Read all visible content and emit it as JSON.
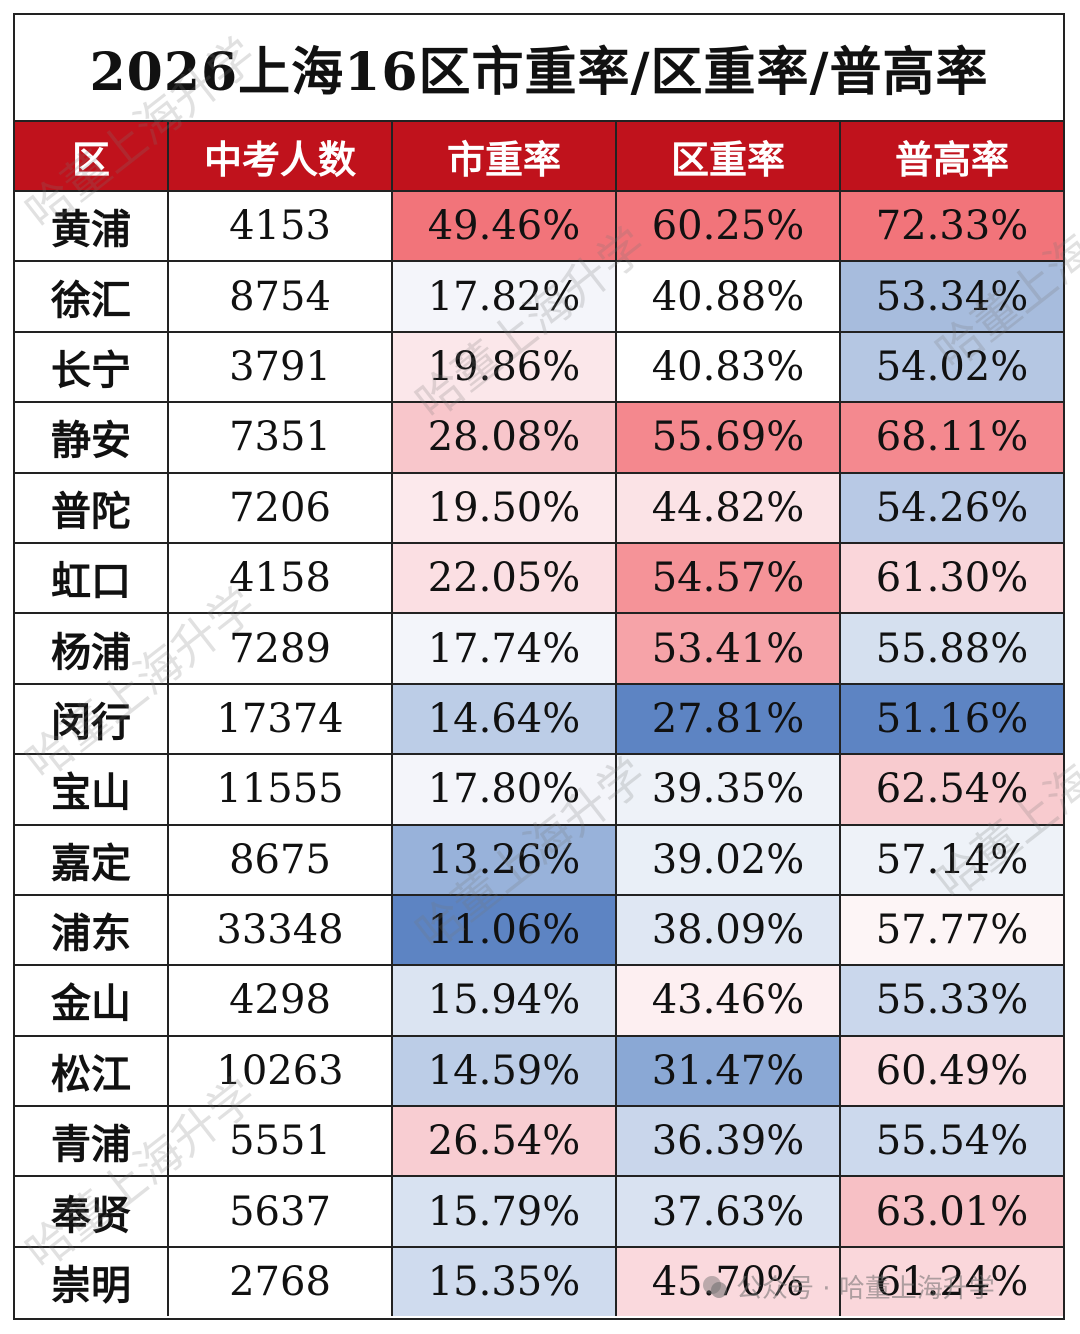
{
  "title": "2026上海16区市重率/区重率/普高率",
  "headers": [
    "区",
    "中考人数",
    "市重率",
    "区重率",
    "普高率"
  ],
  "rows": [
    {
      "district": "黄浦",
      "count": "4153",
      "city": "49.46%",
      "dist": "60.25%",
      "high": "72.33%",
      "city_color": "#f2747a",
      "dist_color": "#f2747a",
      "high_color": "#f2747a"
    },
    {
      "district": "徐汇",
      "count": "8754",
      "city": "17.82%",
      "dist": "40.88%",
      "high": "53.34%",
      "city_color": "#f4f5fa",
      "dist_color": "#ffffff",
      "high_color": "#a7bcdd"
    },
    {
      "district": "长宁",
      "count": "3791",
      "city": "19.86%",
      "dist": "40.83%",
      "high": "54.02%",
      "city_color": "#fbe7ea",
      "dist_color": "#ffffff",
      "high_color": "#b5c7e3"
    },
    {
      "district": "静安",
      "count": "7351",
      "city": "28.08%",
      "dist": "55.69%",
      "high": "68.11%",
      "city_color": "#f8c6cb",
      "dist_color": "#f4888e",
      "high_color": "#f4898f"
    },
    {
      "district": "普陀",
      "count": "7206",
      "city": "19.50%",
      "dist": "44.82%",
      "high": "54.26%",
      "city_color": "#fce9ec",
      "dist_color": "#fbe3e6",
      "high_color": "#b8c9e5"
    },
    {
      "district": "虹口",
      "count": "4158",
      "city": "22.05%",
      "dist": "54.57%",
      "high": "61.30%",
      "city_color": "#fbdfe3",
      "dist_color": "#f59398",
      "high_color": "#fad6da"
    },
    {
      "district": "杨浦",
      "count": "7289",
      "city": "17.74%",
      "dist": "53.41%",
      "high": "55.88%",
      "city_color": "#f3f5fa",
      "dist_color": "#f6a3a8",
      "high_color": "#d5e0ef"
    },
    {
      "district": "闵行",
      "count": "17374",
      "city": "14.64%",
      "dist": "27.81%",
      "high": "51.16%",
      "city_color": "#bccde7",
      "dist_color": "#5d84c3",
      "high_color": "#5d84c3"
    },
    {
      "district": "宝山",
      "count": "11555",
      "city": "17.80%",
      "dist": "39.35%",
      "high": "62.54%",
      "city_color": "#f4f5fa",
      "dist_color": "#eef2f8",
      "high_color": "#f8cbcf"
    },
    {
      "district": "嘉定",
      "count": "8675",
      "city": "13.26%",
      "dist": "39.02%",
      "high": "57.14%",
      "city_color": "#98b2da",
      "dist_color": "#e9eff7",
      "high_color": "#eef2f8"
    },
    {
      "district": "浦东",
      "count": "33348",
      "city": "11.06%",
      "dist": "38.09%",
      "high": "57.77%",
      "city_color": "#5d84c3",
      "dist_color": "#dfe7f3",
      "high_color": "#fdf5f6"
    },
    {
      "district": "金山",
      "count": "4298",
      "city": "15.94%",
      "dist": "43.46%",
      "high": "55.33%",
      "city_color": "#dbe4f2",
      "dist_color": "#fdeff1",
      "high_color": "#cad7ec"
    },
    {
      "district": "松江",
      "count": "10263",
      "city": "14.59%",
      "dist": "31.47%",
      "high": "60.49%",
      "city_color": "#bccde7",
      "dist_color": "#8aa8d5",
      "high_color": "#fbdee2"
    },
    {
      "district": "青浦",
      "count": "5551",
      "city": "26.54%",
      "dist": "36.39%",
      "high": "55.54%",
      "city_color": "#f8cdd2",
      "dist_color": "#c9d6eb",
      "high_color": "#ccd9ed"
    },
    {
      "district": "奉贤",
      "count": "5637",
      "city": "15.79%",
      "dist": "37.63%",
      "high": "63.01%",
      "city_color": "#d8e2f1",
      "dist_color": "#d9e2f1",
      "high_color": "#f7c0c5"
    },
    {
      "district": "崇明",
      "count": "2768",
      "city": "15.35%",
      "dist": "45.70%",
      "high": "61.24%",
      "city_color": "#cfdbee",
      "dist_color": "#fad9dd",
      "high_color": "#fad7db"
    }
  ],
  "watermark_text": "哈董上海升学",
  "footer": {
    "account_label": "公众号 · 哈董上海升学"
  }
}
